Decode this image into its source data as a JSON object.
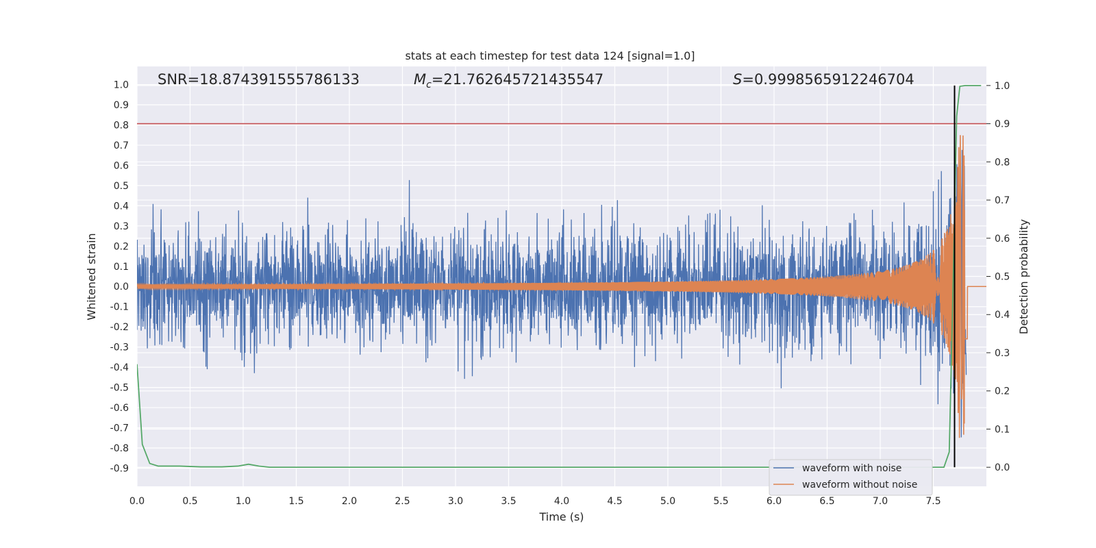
{
  "chart_data": {
    "type": "line",
    "title": "stats at each timestep for test data 124 [signal=1.0]",
    "xlabel": "Time (s)",
    "ylabel": "Whitened strain",
    "y2label": "Detection probability",
    "xlim": [
      0.0,
      8.0
    ],
    "ylim": [
      -0.99,
      1.09
    ],
    "y2lim": [
      -0.05,
      1.05
    ],
    "x_ticks": [
      "0.0",
      "0.5",
      "1.0",
      "1.5",
      "2.0",
      "2.5",
      "3.0",
      "3.5",
      "4.0",
      "4.5",
      "5.0",
      "5.5",
      "6.0",
      "6.5",
      "7.0",
      "7.5"
    ],
    "y_ticks": [
      "1.0",
      "0.9",
      "0.8",
      "0.7",
      "0.6",
      "0.5",
      "0.4",
      "0.3",
      "0.2",
      "0.1",
      "0.0",
      "-0.1",
      "-0.2",
      "-0.3",
      "-0.4",
      "-0.5",
      "-0.6",
      "-0.7",
      "-0.8",
      "-0.9"
    ],
    "y2_ticks": [
      "1.0",
      "0.9",
      "0.8",
      "0.7",
      "0.6",
      "0.5",
      "0.4",
      "0.3",
      "0.2",
      "0.1",
      "0.0"
    ],
    "grid": true,
    "legend_position": "lower-right",
    "annotations": {
      "snr": "SNR=18.874391555786133",
      "mc_symbol": "M",
      "mc_sub": "c",
      "mc_value": "=21.762645721435547",
      "s_symbol": "S",
      "s_value": "=0.9998565912246704"
    },
    "threshold_line": {
      "value_right_axis": 0.9,
      "color": "#c44e52"
    },
    "merger_line": {
      "x": 7.7,
      "color": "#000000"
    },
    "series": [
      {
        "name": "waveform with noise",
        "color": "#4c72b0",
        "axis": "left",
        "noise_envelope": {
          "typical_amplitude": 0.25,
          "peak_range": [
            -0.65,
            0.53
          ]
        }
      },
      {
        "name": "waveform without noise",
        "color": "#dd8452",
        "axis": "left",
        "chirp": {
          "start_amplitude": 0.01,
          "peak_amplitude": 0.75,
          "merger_time": 7.8,
          "end_time": 7.82
        }
      },
      {
        "name": "detection probability",
        "color": "#55a868",
        "axis": "right",
        "x": [
          0.0,
          0.05,
          0.12,
          0.2,
          0.4,
          0.6,
          0.8,
          0.95,
          1.05,
          1.15,
          1.25,
          2.0,
          4.0,
          6.0,
          7.0,
          7.6,
          7.65,
          7.68,
          7.72,
          7.75,
          7.8,
          7.95
        ],
        "y": [
          0.27,
          0.06,
          0.01,
          0.003,
          0.003,
          0.001,
          0.001,
          0.003,
          0.008,
          0.003,
          0.0,
          0.0,
          0.0,
          0.0,
          0.0,
          0.0,
          0.04,
          0.4,
          0.92,
          0.998,
          1.0,
          1.0
        ]
      }
    ]
  }
}
